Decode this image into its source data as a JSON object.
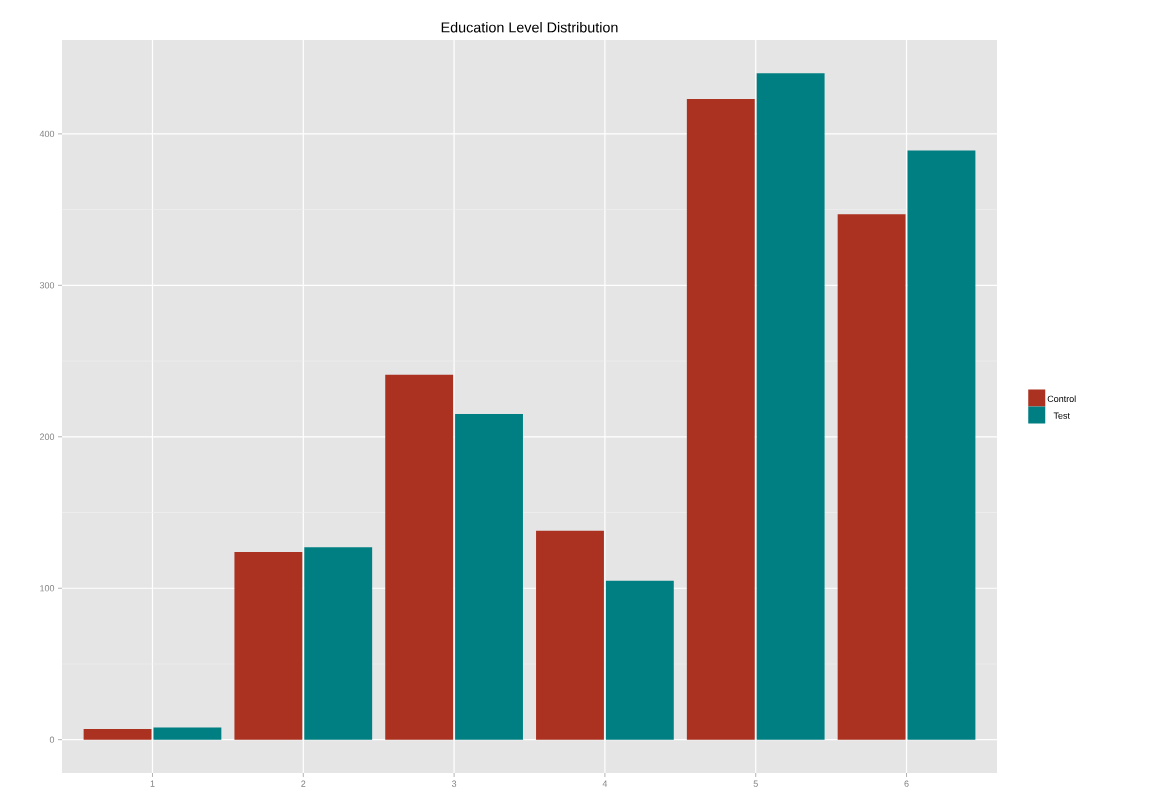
{
  "chart_data": {
    "type": "bar",
    "title": "Education Level Distribution",
    "categories": [
      "1",
      "2",
      "3",
      "4",
      "5",
      "6"
    ],
    "series": [
      {
        "name": "Control",
        "color": "#ab3121",
        "values": [
          7,
          124,
          241,
          138,
          423,
          347
        ]
      },
      {
        "name": "Test",
        "color": "#007f82",
        "values": [
          8,
          127,
          215,
          105,
          440,
          389
        ]
      }
    ],
    "ylim": [
      -22,
      462
    ],
    "yticks": [
      0,
      100,
      200,
      300,
      400
    ],
    "grid": true,
    "legend": "right"
  }
}
